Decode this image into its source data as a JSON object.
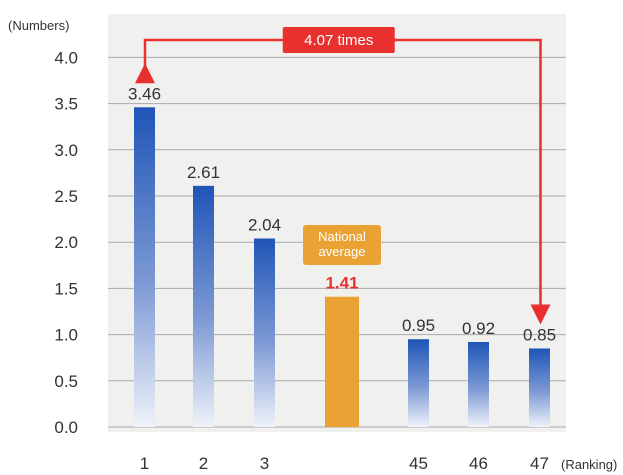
{
  "chart_data": {
    "type": "bar",
    "ylabel": "(Numbers)",
    "xlabel": "(Ranking)",
    "ylim": [
      0,
      4.3
    ],
    "yticks": [
      "0.0",
      "0.5",
      "1.0",
      "1.5",
      "2.0",
      "2.5",
      "3.0",
      "3.5",
      "4.0"
    ],
    "grid": true,
    "bars": [
      {
        "category": "1",
        "value": 3.46,
        "label": "3.46",
        "kind": "rank"
      },
      {
        "category": "2",
        "value": 2.61,
        "label": "2.61",
        "kind": "rank"
      },
      {
        "category": "3",
        "value": 2.04,
        "label": "2.04",
        "kind": "rank"
      },
      {
        "category": "",
        "value": 1.41,
        "label": "1.41",
        "kind": "average"
      },
      {
        "category": "45",
        "value": 0.95,
        "label": "0.95",
        "kind": "rank"
      },
      {
        "category": "46",
        "value": 0.92,
        "label": "0.92",
        "kind": "rank"
      },
      {
        "category": "47",
        "value": 0.85,
        "label": "0.85",
        "kind": "rank"
      }
    ],
    "average_label": [
      "National",
      "average"
    ],
    "ratio_callout": "4.07 times",
    "colors": {
      "bar_top": "#1f55b7",
      "bar_bottom": "#eef2fa",
      "average": "#eba234",
      "callout": "#e8312f",
      "plot_bg": "#f0f0ee",
      "grid": "#a9a9a9"
    }
  }
}
